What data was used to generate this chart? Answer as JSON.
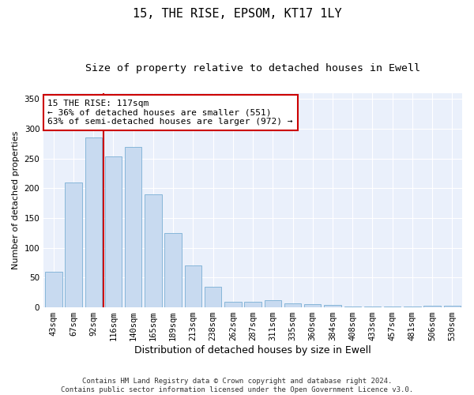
{
  "title": "15, THE RISE, EPSOM, KT17 1LY",
  "subtitle": "Size of property relative to detached houses in Ewell",
  "xlabel": "Distribution of detached houses by size in Ewell",
  "ylabel": "Number of detached properties",
  "categories": [
    "43sqm",
    "67sqm",
    "92sqm",
    "116sqm",
    "140sqm",
    "165sqm",
    "189sqm",
    "213sqm",
    "238sqm",
    "262sqm",
    "287sqm",
    "311sqm",
    "335sqm",
    "360sqm",
    "384sqm",
    "408sqm",
    "433sqm",
    "457sqm",
    "481sqm",
    "506sqm",
    "530sqm"
  ],
  "values": [
    60,
    210,
    285,
    253,
    270,
    190,
    125,
    70,
    35,
    10,
    10,
    12,
    7,
    5,
    4,
    2,
    2,
    2,
    1,
    3,
    3
  ],
  "bar_color": "#c8daf0",
  "bar_edgecolor": "#7aafd4",
  "marker_line_color": "#cc0000",
  "annotation_line1": "15 THE RISE: 117sqm",
  "annotation_line2": "← 36% of detached houses are smaller (551)",
  "annotation_line3": "63% of semi-detached houses are larger (972) →",
  "annotation_box_color": "#ffffff",
  "annotation_box_edgecolor": "#cc0000",
  "ylim": [
    0,
    360
  ],
  "yticks": [
    0,
    50,
    100,
    150,
    200,
    250,
    300,
    350
  ],
  "background_color": "#eaf0fb",
  "grid_color": "#ffffff",
  "footer_line1": "Contains HM Land Registry data © Crown copyright and database right 2024.",
  "footer_line2": "Contains public sector information licensed under the Open Government Licence v3.0.",
  "title_fontsize": 11,
  "subtitle_fontsize": 9.5,
  "xlabel_fontsize": 9,
  "ylabel_fontsize": 8,
  "tick_fontsize": 7.5,
  "annotation_fontsize": 8,
  "footer_fontsize": 6.5,
  "marker_bin_index": 3
}
